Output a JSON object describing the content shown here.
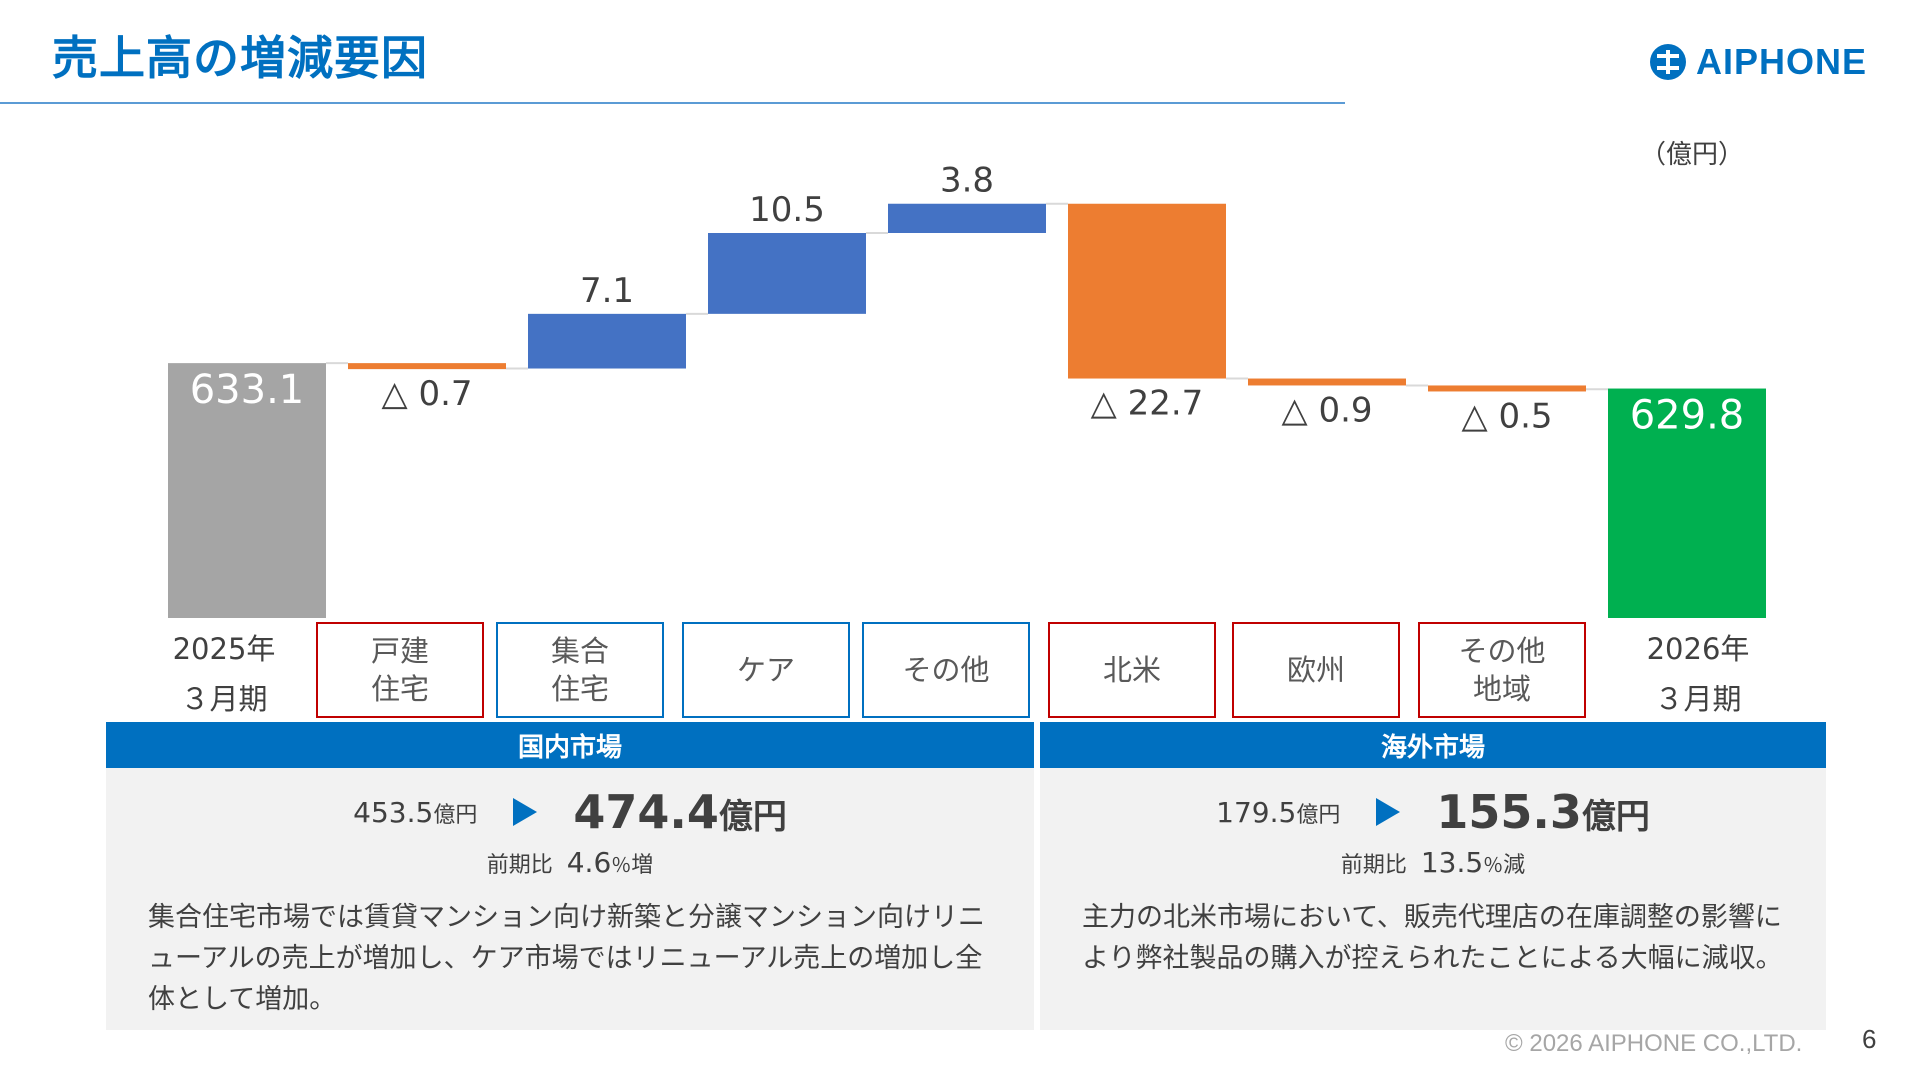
{
  "header": {
    "title": "売上高の増減要因",
    "logo_text": "AIPHONE",
    "unit": "（億円）"
  },
  "colors": {
    "accent": "#0070C0",
    "increase": "#4472C4",
    "decrease": "#ED7D31",
    "start_total": "#A5A5A5",
    "end_total": "#00B050",
    "domestic_border": "#0070C0",
    "overseas_border": "#C00000"
  },
  "chart_data": {
    "type": "bar",
    "subtype": "waterfall",
    "categories": [
      "2025年3月期",
      "戸建住宅",
      "集合住宅",
      "ケア",
      "その他",
      "北米",
      "欧州",
      "その他地域",
      "2026年3月期"
    ],
    "values": [
      633.1,
      -0.7,
      7.1,
      10.5,
      3.8,
      -22.7,
      -0.9,
      -0.5,
      629.8
    ],
    "labels": [
      "633.1",
      "△ 0.7",
      "7.1",
      "10.5",
      "3.8",
      "△ 22.7",
      "△ 0.9",
      "△ 0.5",
      "629.8"
    ],
    "kinds": [
      "total",
      "delta",
      "delta",
      "delta",
      "delta",
      "delta",
      "delta",
      "delta",
      "total"
    ],
    "unit": "（億円）"
  },
  "axis": {
    "start_line1": "2025年",
    "start_line2": "３月期",
    "end_line1": "2026年",
    "end_line2": "３月期"
  },
  "categories": {
    "detached": "戸建\n住宅",
    "apartment": "集合\n住宅",
    "care": "ケア",
    "other_domestic": "その他",
    "north_america": "北米",
    "europe": "欧州",
    "other_regions": "その他\n地域"
  },
  "domestic": {
    "header": "国内市場",
    "prev_value": "453.5",
    "prev_unit": "億円",
    "curr_value": "474.4",
    "curr_unit": "億円",
    "ratio_label": "前期比",
    "ratio_value": "4.6",
    "ratio_pct": "％",
    "ratio_dir": "増",
    "description": "集合住宅市場では賃貸マンション向け新築と分譲マンション向けリニューアルの売上が増加し、ケア市場ではリニューアル売上の増加し全体として増加。"
  },
  "overseas": {
    "header": "海外市場",
    "prev_value": "179.5",
    "prev_unit": "億円",
    "curr_value": "155.3",
    "curr_unit": "億円",
    "ratio_label": "前期比",
    "ratio_value": "13.5",
    "ratio_pct": "％",
    "ratio_dir": "減",
    "description": "主力の北米市場において、販売代理店の在庫調整の影響により弊社製品の購入が控えられたことによる大幅に減収。"
  },
  "footer": {
    "copyright": "© 2026 AIPHONE CO.,LTD.",
    "page_number": "6"
  }
}
